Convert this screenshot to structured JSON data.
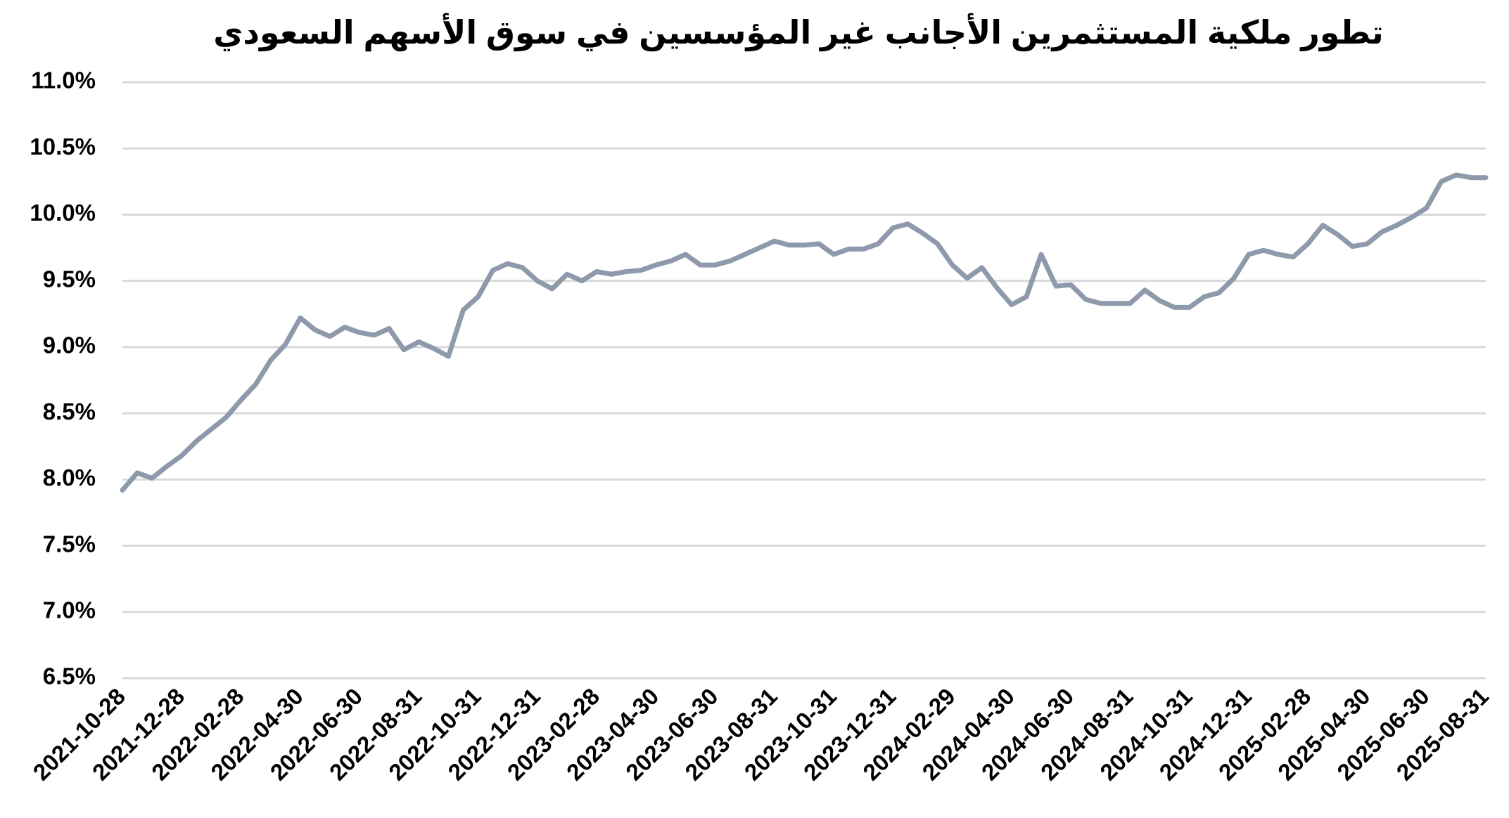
{
  "chart_data": {
    "type": "line",
    "title": "تطور ملكية المستثمرين الأجانب غير المؤسسين في سوق الأسهم السعودي",
    "categories": [
      "2021-10-28",
      null,
      null,
      null,
      "2021-12-28",
      null,
      null,
      null,
      "2022-02-28",
      null,
      null,
      null,
      "2022-04-30",
      null,
      null,
      null,
      "2022-06-30",
      null,
      null,
      null,
      "2022-08-31",
      null,
      null,
      null,
      "2022-10-31",
      null,
      null,
      null,
      "2022-12-31",
      null,
      null,
      null,
      "2023-02-28",
      null,
      null,
      null,
      "2023-04-30",
      null,
      null,
      null,
      "2023-06-30",
      null,
      null,
      null,
      "2023-08-31",
      null,
      null,
      null,
      "2023-10-31",
      null,
      null,
      null,
      "2023-12-31",
      null,
      null,
      null,
      "2024-02-29",
      null,
      null,
      null,
      "2024-04-30",
      null,
      null,
      null,
      "2024-06-30",
      null,
      null,
      null,
      "2024-08-31",
      null,
      null,
      null,
      "2024-10-31",
      null,
      null,
      null,
      "2024-12-31",
      null,
      null,
      null,
      "2025-02-28",
      null,
      null,
      null,
      "2025-04-30",
      null,
      null,
      null,
      "2025-06-30",
      null,
      null,
      null,
      "2025-08-31"
    ],
    "series": [
      {
        "color": "#8e9aab",
        "values": [
          7.92,
          8.05,
          8.01,
          8.1,
          8.18,
          8.29,
          8.38,
          8.47,
          8.6,
          8.72,
          8.9,
          9.02,
          9.22,
          9.13,
          9.08,
          9.15,
          9.11,
          9.09,
          9.14,
          8.98,
          9.04,
          8.99,
          8.93,
          9.28,
          9.38,
          9.58,
          9.63,
          9.6,
          9.5,
          9.44,
          9.55,
          9.5,
          9.57,
          9.55,
          9.57,
          9.58,
          9.62,
          9.65,
          9.7,
          9.62,
          9.62,
          9.65,
          9.7,
          9.75,
          9.8,
          9.77,
          9.77,
          9.78,
          9.7,
          9.74,
          9.74,
          9.78,
          9.9,
          9.93,
          9.86,
          9.78,
          9.62,
          9.52,
          9.6,
          9.45,
          9.32,
          9.38,
          9.7,
          9.46,
          9.47,
          9.36,
          9.33,
          9.33,
          9.33,
          9.43,
          9.35,
          9.3,
          9.3,
          9.38,
          9.41,
          9.52,
          9.7,
          9.73,
          9.7,
          9.68,
          9.78,
          9.92,
          9.85,
          9.76,
          9.78,
          9.87,
          9.92,
          9.98,
          10.05,
          10.25,
          10.3,
          10.28,
          10.28
        ]
      }
    ],
    "ylim": [
      6.5,
      11.0
    ],
    "yticks": [
      {
        "value": 6.5,
        "label": "6.5%"
      },
      {
        "value": 7.0,
        "label": "7.0%"
      },
      {
        "value": 7.5,
        "label": "7.5%"
      },
      {
        "value": 8.0,
        "label": "8.0%"
      },
      {
        "value": 8.5,
        "label": "8.5%"
      },
      {
        "value": 9.0,
        "label": "9.0%"
      },
      {
        "value": 9.5,
        "label": "9.5%"
      },
      {
        "value": 10.0,
        "label": "10.0%"
      },
      {
        "value": 10.5,
        "label": "10.5%"
      },
      {
        "value": 11.0,
        "label": "11.0%"
      }
    ],
    "grid": true
  }
}
